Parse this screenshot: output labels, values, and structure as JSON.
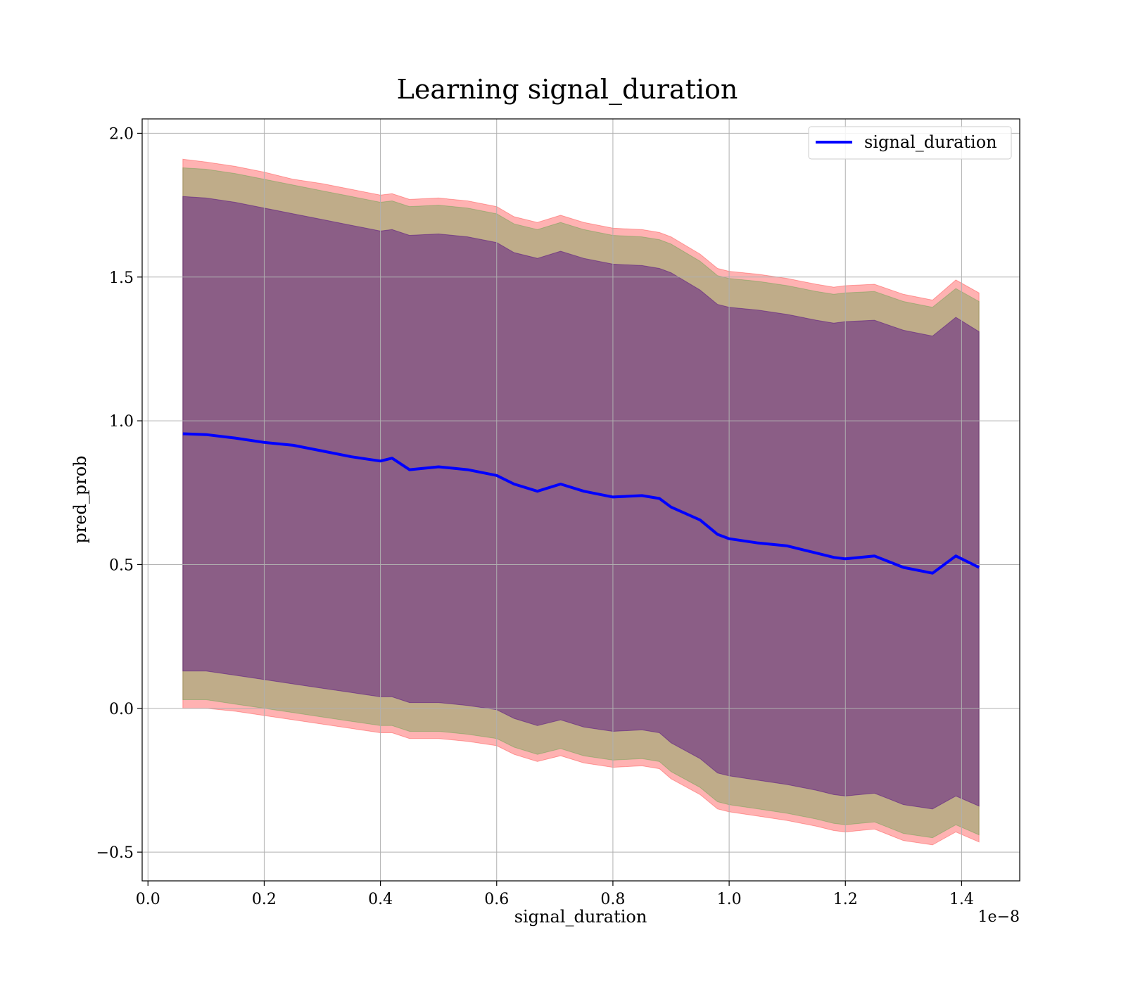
{
  "chart_data": {
    "type": "line",
    "title": "Learning signal_duration",
    "xlabel": "signal_duration",
    "ylabel": "pred_prob",
    "x_offset_label": "1e−8",
    "xlim": [
      -0.01,
      1.5
    ],
    "ylim": [
      -0.6,
      2.05
    ],
    "grid": true,
    "legend_position": "upper-right",
    "x_ticks": [
      0.0,
      0.2,
      0.4,
      0.6,
      0.8,
      1.0,
      1.2,
      1.4
    ],
    "x_tick_labels": [
      "0.0",
      "0.2",
      "0.4",
      "0.6",
      "0.8",
      "1.0",
      "1.2",
      "1.4"
    ],
    "y_ticks": [
      -0.5,
      0.0,
      0.5,
      1.0,
      1.5,
      2.0
    ],
    "y_tick_labels": [
      "−0.5",
      "0.0",
      "0.5",
      "1.0",
      "1.5",
      "2.0"
    ],
    "x": [
      0.06,
      0.1,
      0.15,
      0.2,
      0.25,
      0.3,
      0.35,
      0.4,
      0.42,
      0.45,
      0.5,
      0.55,
      0.6,
      0.63,
      0.67,
      0.71,
      0.75,
      0.8,
      0.85,
      0.88,
      0.9,
      0.95,
      0.98,
      1.0,
      1.05,
      1.1,
      1.15,
      1.18,
      1.2,
      1.25,
      1.3,
      1.35,
      1.39,
      1.43
    ],
    "series": [
      {
        "name": "signal_duration",
        "color": "#0000ff",
        "values": [
          0.955,
          0.952,
          0.94,
          0.925,
          0.915,
          0.895,
          0.875,
          0.86,
          0.87,
          0.83,
          0.84,
          0.83,
          0.81,
          0.78,
          0.755,
          0.78,
          0.755,
          0.735,
          0.74,
          0.73,
          0.7,
          0.655,
          0.605,
          0.59,
          0.575,
          0.565,
          0.54,
          0.525,
          0.52,
          0.53,
          0.49,
          0.47,
          0.53,
          0.49
        ]
      }
    ],
    "bands": [
      {
        "color": "#ff0000",
        "opacity": 0.3,
        "upper": [
          1.91,
          1.9,
          1.885,
          1.865,
          1.84,
          1.825,
          1.805,
          1.785,
          1.79,
          1.77,
          1.775,
          1.765,
          1.745,
          1.71,
          1.69,
          1.715,
          1.69,
          1.67,
          1.665,
          1.655,
          1.64,
          1.58,
          1.53,
          1.52,
          1.51,
          1.495,
          1.475,
          1.465,
          1.47,
          1.475,
          1.44,
          1.42,
          1.49,
          1.445
        ],
        "lower": [
          0.0,
          -0.0,
          -0.01,
          -0.025,
          -0.04,
          -0.055,
          -0.07,
          -0.085,
          -0.085,
          -0.105,
          -0.105,
          -0.115,
          -0.13,
          -0.16,
          -0.185,
          -0.165,
          -0.19,
          -0.205,
          -0.2,
          -0.21,
          -0.245,
          -0.3,
          -0.35,
          -0.36,
          -0.375,
          -0.39,
          -0.41,
          -0.425,
          -0.43,
          -0.42,
          -0.46,
          -0.475,
          -0.43,
          -0.465
        ]
      },
      {
        "color": "#2ca02c",
        "opacity": 0.3,
        "upper": [
          1.88,
          1.875,
          1.86,
          1.84,
          1.82,
          1.8,
          1.78,
          1.76,
          1.765,
          1.745,
          1.75,
          1.74,
          1.72,
          1.685,
          1.665,
          1.69,
          1.665,
          1.645,
          1.64,
          1.63,
          1.615,
          1.555,
          1.505,
          1.495,
          1.485,
          1.47,
          1.45,
          1.44,
          1.445,
          1.45,
          1.415,
          1.395,
          1.46,
          1.415
        ],
        "lower": [
          0.03,
          0.03,
          0.015,
          0.0,
          -0.015,
          -0.03,
          -0.045,
          -0.06,
          -0.06,
          -0.08,
          -0.08,
          -0.09,
          -0.105,
          -0.135,
          -0.16,
          -0.14,
          -0.165,
          -0.18,
          -0.175,
          -0.185,
          -0.22,
          -0.275,
          -0.325,
          -0.335,
          -0.35,
          -0.365,
          -0.385,
          -0.4,
          -0.405,
          -0.395,
          -0.435,
          -0.45,
          -0.405,
          -0.44
        ]
      },
      {
        "color": "#4b0082",
        "opacity": 0.45,
        "upper": [
          1.78,
          1.775,
          1.76,
          1.74,
          1.72,
          1.7,
          1.68,
          1.66,
          1.665,
          1.645,
          1.65,
          1.64,
          1.62,
          1.585,
          1.565,
          1.59,
          1.565,
          1.545,
          1.54,
          1.53,
          1.515,
          1.455,
          1.405,
          1.395,
          1.385,
          1.37,
          1.35,
          1.34,
          1.345,
          1.35,
          1.315,
          1.295,
          1.36,
          1.31
        ],
        "lower": [
          0.13,
          0.13,
          0.115,
          0.1,
          0.085,
          0.07,
          0.055,
          0.04,
          0.04,
          0.02,
          0.02,
          0.01,
          -0.005,
          -0.035,
          -0.06,
          -0.04,
          -0.065,
          -0.08,
          -0.075,
          -0.085,
          -0.12,
          -0.175,
          -0.225,
          -0.235,
          -0.25,
          -0.265,
          -0.285,
          -0.3,
          -0.305,
          -0.295,
          -0.335,
          -0.35,
          -0.305,
          -0.34
        ]
      }
    ]
  }
}
